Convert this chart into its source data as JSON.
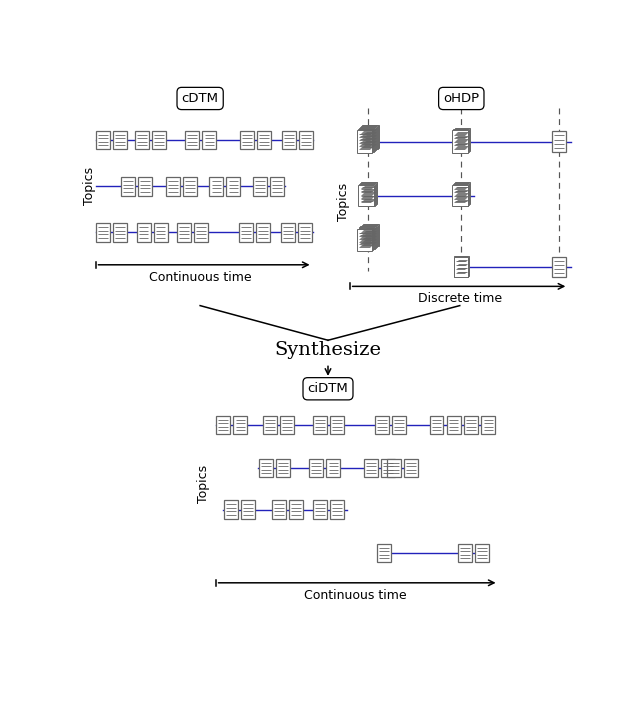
{
  "bg_color": "#ffffff",
  "line_color": "#2222bb",
  "box_edge_color": "#666666",
  "box_fill": "#ffffff",
  "inner_line_color": "#666666",
  "title_cdtm": "cDTM",
  "title_ohdp": "oHDP",
  "title_cidtm": "ciDTM",
  "synthesize_text": "Synthesize",
  "label_continuous": "Continuous time",
  "label_discrete": "Discrete time",
  "label_topics": "Topics"
}
